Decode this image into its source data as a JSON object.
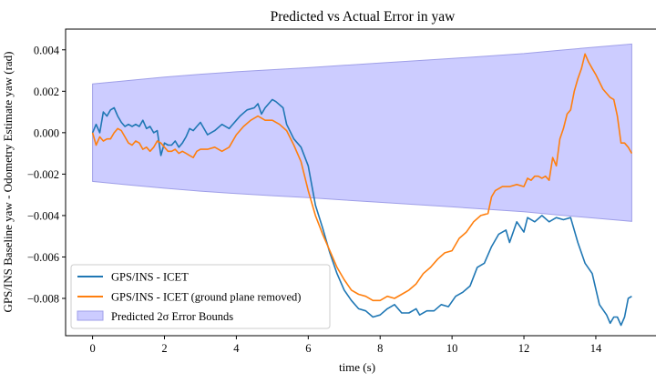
{
  "chart_data": {
    "type": "line",
    "title": "Predicted vs Actual Error in yaw",
    "xlabel": "time (s)",
    "ylabel": "GPS/INS Baseline yaw - Odometry Estimate yaw (rad)",
    "xlim": [
      -0.75,
      15.75
    ],
    "ylim": [
      -0.0098,
      0.005
    ],
    "x_ticks": [
      0,
      2,
      4,
      6,
      8,
      10,
      12,
      14
    ],
    "x_tick_labels": [
      "0",
      "2",
      "4",
      "6",
      "8",
      "10",
      "12",
      "14"
    ],
    "y_ticks": [
      0.004,
      0.002,
      0.0,
      -0.002,
      -0.004,
      -0.006,
      -0.008
    ],
    "y_tick_labels": [
      "0.004",
      "0.002",
      "0.000",
      "−0.002",
      "−0.004",
      "−0.006",
      "−0.008"
    ],
    "grid": false,
    "legend_position": "lower-left",
    "band": {
      "name": "Predicted 2σ Error Bounds",
      "color": "#ccccff",
      "edge_color": "#9f9fe8",
      "x": [
        0,
        1,
        2,
        3,
        4,
        5,
        6,
        7,
        8,
        9,
        10,
        11,
        12,
        13,
        14,
        15
      ],
      "upper": [
        0.00235,
        0.00252,
        0.00268,
        0.00282,
        0.00294,
        0.00304,
        0.00314,
        0.00325,
        0.00336,
        0.00347,
        0.00358,
        0.0037,
        0.00382,
        0.00398,
        0.00413,
        0.00428
      ],
      "lower": [
        -0.00235,
        -0.00252,
        -0.00268,
        -0.00282,
        -0.00294,
        -0.00304,
        -0.00314,
        -0.00325,
        -0.00336,
        -0.00347,
        -0.00358,
        -0.0037,
        -0.00382,
        -0.00398,
        -0.00413,
        -0.00428
      ]
    },
    "series": [
      {
        "name": "GPS/INS - ICET",
        "color": "#1f77b4",
        "x": [
          0,
          0.1,
          0.2,
          0.3,
          0.4,
          0.5,
          0.6,
          0.7,
          0.8,
          0.9,
          1.0,
          1.1,
          1.2,
          1.3,
          1.4,
          1.5,
          1.6,
          1.7,
          1.8,
          1.9,
          2.0,
          2.1,
          2.2,
          2.3,
          2.4,
          2.5,
          2.6,
          2.7,
          2.8,
          2.9,
          3.0,
          3.2,
          3.4,
          3.6,
          3.8,
          4.0,
          4.1,
          4.3,
          4.5,
          4.6,
          4.7,
          4.8,
          5.0,
          5.1,
          5.3,
          5.4,
          5.6,
          5.8,
          6.0,
          6.2,
          6.4,
          6.6,
          6.8,
          7.0,
          7.2,
          7.4,
          7.6,
          7.8,
          8.0,
          8.2,
          8.4,
          8.6,
          8.8,
          9.0,
          9.1,
          9.3,
          9.5,
          9.7,
          9.9,
          10.1,
          10.3,
          10.5,
          10.7,
          10.9,
          11.1,
          11.3,
          11.5,
          11.6,
          11.8,
          12.0,
          12.1,
          12.3,
          12.5,
          12.7,
          12.9,
          13.1,
          13.3,
          13.5,
          13.7,
          13.9,
          14.1,
          14.3,
          14.4,
          14.5,
          14.6,
          14.7,
          14.8,
          14.9,
          15.0
        ],
        "y": [
          0.0,
          0.0004,
          0.0,
          0.001,
          0.0008,
          0.0011,
          0.0012,
          0.0008,
          0.0005,
          0.0003,
          0.0004,
          0.0003,
          0.0004,
          0.0003,
          0.0006,
          0.0002,
          0.0003,
          0.0,
          0.0001,
          -0.0011,
          -0.0005,
          -0.0006,
          -0.0006,
          -0.0004,
          -0.0007,
          -0.0005,
          -0.0002,
          0.0002,
          0.0001,
          0.0003,
          0.0005,
          -0.0001,
          0.0001,
          0.0004,
          0.0002,
          0.0006,
          0.0008,
          0.0011,
          0.0012,
          0.0014,
          0.0009,
          0.0012,
          0.0016,
          0.0015,
          0.0012,
          0.0004,
          -0.0003,
          -0.0007,
          -0.0016,
          -0.0035,
          -0.0046,
          -0.0058,
          -0.0068,
          -0.0076,
          -0.0081,
          -0.0085,
          -0.0086,
          -0.0089,
          -0.0088,
          -0.0085,
          -0.0083,
          -0.0087,
          -0.0087,
          -0.0085,
          -0.0088,
          -0.0086,
          -0.0086,
          -0.0083,
          -0.0084,
          -0.0079,
          -0.0077,
          -0.0074,
          -0.0065,
          -0.0063,
          -0.0055,
          -0.0049,
          -0.0047,
          -0.0053,
          -0.0043,
          -0.0048,
          -0.0041,
          -0.0043,
          -0.004,
          -0.0043,
          -0.0041,
          -0.0042,
          -0.0041,
          -0.0053,
          -0.0063,
          -0.0068,
          -0.0083,
          -0.0088,
          -0.0092,
          -0.0089,
          -0.0089,
          -0.0093,
          -0.0089,
          -0.008,
          -0.0079
        ]
      },
      {
        "name": "GPS/INS - ICET (ground plane removed)",
        "color": "#ff7f0e",
        "x": [
          0,
          0.1,
          0.2,
          0.3,
          0.4,
          0.5,
          0.6,
          0.7,
          0.8,
          0.9,
          1.0,
          1.1,
          1.2,
          1.3,
          1.4,
          1.5,
          1.6,
          1.7,
          1.8,
          1.9,
          2.0,
          2.1,
          2.2,
          2.3,
          2.4,
          2.5,
          2.6,
          2.7,
          2.8,
          2.9,
          3.0,
          3.2,
          3.4,
          3.6,
          3.8,
          4.0,
          4.2,
          4.4,
          4.6,
          4.8,
          5.0,
          5.2,
          5.4,
          5.6,
          5.8,
          6.0,
          6.2,
          6.4,
          6.6,
          6.8,
          7.0,
          7.2,
          7.4,
          7.6,
          7.8,
          8.0,
          8.2,
          8.4,
          8.6,
          8.8,
          9.0,
          9.2,
          9.4,
          9.6,
          9.8,
          10.0,
          10.2,
          10.4,
          10.6,
          10.8,
          11.0,
          11.1,
          11.2,
          11.4,
          11.6,
          11.8,
          12.0,
          12.1,
          12.2,
          12.3,
          12.4,
          12.5,
          12.6,
          12.7,
          12.8,
          12.9,
          13.0,
          13.1,
          13.2,
          13.3,
          13.4,
          13.5,
          13.6,
          13.7,
          13.8,
          13.9,
          14.0,
          14.2,
          14.4,
          14.5,
          14.6,
          14.7,
          14.8,
          14.9,
          15.0
        ],
        "y": [
          0.0,
          -0.0006,
          -0.0002,
          -0.0004,
          -0.0003,
          -0.0003,
          0.0,
          0.0002,
          0.0001,
          -0.0002,
          -0.0005,
          -0.0006,
          -0.0004,
          -0.0005,
          -0.0008,
          -0.0007,
          -0.0009,
          -0.0007,
          -0.0004,
          -0.0005,
          -0.0007,
          -0.0009,
          -0.0009,
          -0.0008,
          -0.001,
          -0.0009,
          -0.001,
          -0.0011,
          -0.0012,
          -0.0009,
          -0.0008,
          -0.0008,
          -0.0007,
          -0.0009,
          -0.0007,
          -0.0001,
          0.0003,
          0.0006,
          0.0008,
          0.0006,
          0.0006,
          0.0004,
          0.0001,
          -0.0006,
          -0.0014,
          -0.0028,
          -0.004,
          -0.0049,
          -0.0057,
          -0.0065,
          -0.0071,
          -0.0076,
          -0.0078,
          -0.0079,
          -0.0081,
          -0.0081,
          -0.0079,
          -0.008,
          -0.0078,
          -0.0076,
          -0.0073,
          -0.0068,
          -0.0065,
          -0.0061,
          -0.0058,
          -0.0057,
          -0.0051,
          -0.0048,
          -0.0043,
          -0.004,
          -0.0039,
          -0.0031,
          -0.0028,
          -0.0026,
          -0.0026,
          -0.0025,
          -0.0026,
          -0.0022,
          -0.0023,
          -0.0021,
          -0.0021,
          -0.0022,
          -0.0021,
          -0.0023,
          -0.0012,
          -0.0016,
          -0.0003,
          0.0002,
          0.0009,
          0.0011,
          0.002,
          0.0026,
          0.0031,
          0.0038,
          0.0034,
          0.0031,
          0.0028,
          0.0021,
          0.0017,
          0.0016,
          0.0008,
          -0.0005,
          -0.0005,
          -0.0007,
          -0.001
        ]
      }
    ]
  }
}
